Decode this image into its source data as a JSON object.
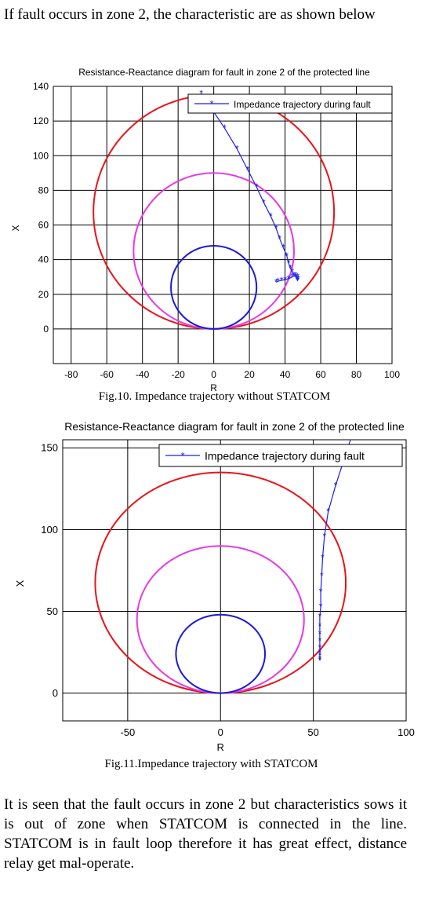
{
  "intro_text": "If fault occurs in zone 2, the characteristic are as shown below",
  "conclusion_text": "It is seen that the fault occurs in zone 2 but characteristics sows it is out of zone when STATCOM is connected in the line. STATCOM is in fault loop therefore it has great effect, distance relay get mal-operate.",
  "figures": [
    {
      "caption": "Fig.10. Impedance trajectory without STATCOM"
    },
    {
      "caption": "Fig.11.Impedance trajectory with STATCOM"
    }
  ],
  "colors": {
    "outer_circle": "#e8141b",
    "middle_circle": "#e63ae3",
    "inner_circle": "#1a1ad9",
    "trajectory": "#1d1df0"
  },
  "chart_data": [
    {
      "type": "line",
      "title": "Resistance-Reactance diagram for fault in zone 2 of the protected line",
      "xlabel": "R",
      "ylabel": "X",
      "xlim": [
        -90,
        100
      ],
      "ylim": [
        -20,
        140
      ],
      "xticks": [
        -80,
        -60,
        -40,
        -20,
        0,
        20,
        40,
        60,
        80,
        100
      ],
      "yticks": [
        0,
        20,
        40,
        60,
        80,
        100,
        120,
        140
      ],
      "grid": true,
      "legend": "top-right",
      "circles": [
        {
          "center": [
            0,
            67.5
          ],
          "radius": 67.5,
          "color": "#e8141b"
        },
        {
          "center": [
            0,
            45
          ],
          "radius": 45,
          "color": "#e63ae3"
        },
        {
          "center": [
            0,
            24
          ],
          "radius": 24,
          "color": "#1a1ad9"
        }
      ],
      "series": [
        {
          "name": "Impedance trajectory during fault",
          "x": [
            -7,
            6,
            13,
            19,
            24,
            28,
            32,
            35,
            37,
            39,
            41,
            42,
            43,
            44,
            45,
            46,
            46.5,
            47,
            47.5,
            47,
            46,
            44,
            42,
            40,
            38,
            36,
            35
          ],
          "y": [
            136,
            116,
            104,
            92,
            82,
            73,
            65,
            58,
            52,
            47,
            42,
            38,
            35,
            33,
            31,
            30,
            29,
            28,
            29,
            30,
            31,
            30,
            29,
            28.5,
            28,
            27.5,
            27
          ]
        }
      ]
    },
    {
      "type": "line",
      "title": "Resistance-Reactance diagram for fault in zone 2 of the protected line",
      "xlabel": "R",
      "ylabel": "X",
      "xlim": [
        -85,
        100
      ],
      "ylim": [
        -17,
        155
      ],
      "xticks": [
        -50,
        0,
        50,
        100
      ],
      "yticks": [
        0,
        50,
        100,
        150
      ],
      "grid": true,
      "legend": "top-right",
      "circles": [
        {
          "center": [
            0,
            67.5
          ],
          "radius": 67.5,
          "color": "#e8141b"
        },
        {
          "center": [
            0,
            45
          ],
          "radius": 45,
          "color": "#e63ae3"
        },
        {
          "center": [
            0,
            24
          ],
          "radius": 24,
          "color": "#1a1ad9"
        }
      ],
      "series": [
        {
          "name": "Impedance trajectory during fault",
          "x": [
            70,
            62,
            58,
            56,
            55,
            54.5,
            54,
            54,
            53.5,
            53.5,
            53.5,
            53.5,
            53.5,
            53.5,
            53.5,
            53.5,
            53.5
          ],
          "y": [
            155,
            127,
            111,
            96,
            83,
            72,
            62,
            53,
            47,
            41,
            36,
            32,
            28,
            25,
            23,
            21,
            20
          ]
        }
      ]
    }
  ]
}
